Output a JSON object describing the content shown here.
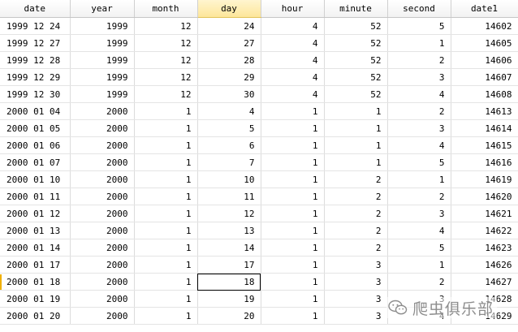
{
  "columns": [
    {
      "key": "date",
      "label": "date"
    },
    {
      "key": "year",
      "label": "year"
    },
    {
      "key": "month",
      "label": "month"
    },
    {
      "key": "day",
      "label": "day"
    },
    {
      "key": "hour",
      "label": "hour"
    },
    {
      "key": "minute",
      "label": "minute"
    },
    {
      "key": "second",
      "label": "second"
    },
    {
      "key": "date1",
      "label": "date1"
    }
  ],
  "selected_column": "day",
  "selected_cell": {
    "row": 15,
    "column": "day"
  },
  "rows": [
    {
      "date": "1999 12 24",
      "year": "1999",
      "month": "12",
      "day": "24",
      "hour": "4",
      "minute": "52",
      "second": "5",
      "date1": "14602"
    },
    {
      "date": "1999 12 27",
      "year": "1999",
      "month": "12",
      "day": "27",
      "hour": "4",
      "minute": "52",
      "second": "1",
      "date1": "14605"
    },
    {
      "date": "1999 12 28",
      "year": "1999",
      "month": "12",
      "day": "28",
      "hour": "4",
      "minute": "52",
      "second": "2",
      "date1": "14606"
    },
    {
      "date": "1999 12 29",
      "year": "1999",
      "month": "12",
      "day": "29",
      "hour": "4",
      "minute": "52",
      "second": "3",
      "date1": "14607"
    },
    {
      "date": "1999 12 30",
      "year": "1999",
      "month": "12",
      "day": "30",
      "hour": "4",
      "minute": "52",
      "second": "4",
      "date1": "14608"
    },
    {
      "date": "2000 01 04",
      "year": "2000",
      "month": "1",
      "day": "4",
      "hour": "1",
      "minute": "1",
      "second": "2",
      "date1": "14613"
    },
    {
      "date": "2000 01 05",
      "year": "2000",
      "month": "1",
      "day": "5",
      "hour": "1",
      "minute": "1",
      "second": "3",
      "date1": "14614"
    },
    {
      "date": "2000 01 06",
      "year": "2000",
      "month": "1",
      "day": "6",
      "hour": "1",
      "minute": "1",
      "second": "4",
      "date1": "14615"
    },
    {
      "date": "2000 01 07",
      "year": "2000",
      "month": "1",
      "day": "7",
      "hour": "1",
      "minute": "1",
      "second": "5",
      "date1": "14616"
    },
    {
      "date": "2000 01 10",
      "year": "2000",
      "month": "1",
      "day": "10",
      "hour": "1",
      "minute": "2",
      "second": "1",
      "date1": "14619"
    },
    {
      "date": "2000 01 11",
      "year": "2000",
      "month": "1",
      "day": "11",
      "hour": "1",
      "minute": "2",
      "second": "2",
      "date1": "14620"
    },
    {
      "date": "2000 01 12",
      "year": "2000",
      "month": "1",
      "day": "12",
      "hour": "1",
      "minute": "2",
      "second": "3",
      "date1": "14621"
    },
    {
      "date": "2000 01 13",
      "year": "2000",
      "month": "1",
      "day": "13",
      "hour": "1",
      "minute": "2",
      "second": "4",
      "date1": "14622"
    },
    {
      "date": "2000 01 14",
      "year": "2000",
      "month": "1",
      "day": "14",
      "hour": "1",
      "minute": "2",
      "second": "5",
      "date1": "14623"
    },
    {
      "date": "2000 01 17",
      "year": "2000",
      "month": "1",
      "day": "17",
      "hour": "1",
      "minute": "3",
      "second": "1",
      "date1": "14626"
    },
    {
      "date": "2000 01 18",
      "year": "2000",
      "month": "1",
      "day": "18",
      "hour": "1",
      "minute": "3",
      "second": "2",
      "date1": "14627"
    },
    {
      "date": "2000 01 19",
      "year": "2000",
      "month": "1",
      "day": "19",
      "hour": "1",
      "minute": "3",
      "second": "3",
      "date1": "14628"
    },
    {
      "date": "2000 01 20",
      "year": "2000",
      "month": "1",
      "day": "20",
      "hour": "1",
      "minute": "3",
      "second": "4",
      "date1": "14629"
    }
  ],
  "watermark": {
    "icon": "wechat-icon",
    "text": "爬虫俱乐部"
  },
  "colors": {
    "selected_header": "#fde69a",
    "row_marker": "#f0b000"
  }
}
